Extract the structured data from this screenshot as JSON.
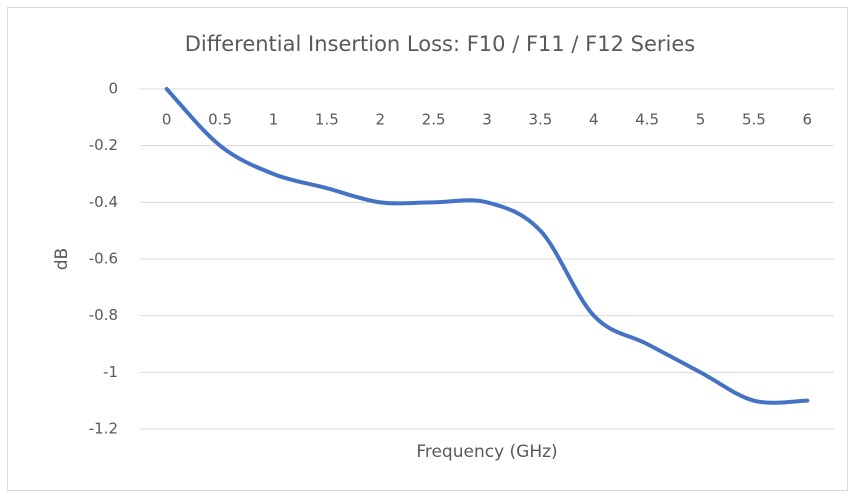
{
  "chart_data": {
    "type": "line",
    "title": "Differential Insertion Loss: F10 / F11 / F12 Series",
    "x_label": "Frequency (GHz)",
    "y_label": "dB",
    "categories": [
      "0",
      "0.5",
      "1",
      "1.5",
      "2",
      "2.5",
      "3",
      "3.5",
      "4",
      "4.5",
      "5",
      "5.5",
      "6"
    ],
    "series": [
      {
        "color": "#4472c4",
        "values": [
          0,
          -0.2,
          -0.3,
          -0.35,
          -0.4,
          -0.4,
          -0.4,
          -0.5,
          -0.8,
          -0.9,
          -1.0,
          -1.1,
          -1.1
        ]
      }
    ],
    "ylim": [
      -1.2,
      0
    ],
    "yticks": [
      -1.2,
      -1,
      -0.8,
      -0.6,
      -0.4,
      -0.2,
      0
    ],
    "grid": true,
    "smooth": true
  }
}
